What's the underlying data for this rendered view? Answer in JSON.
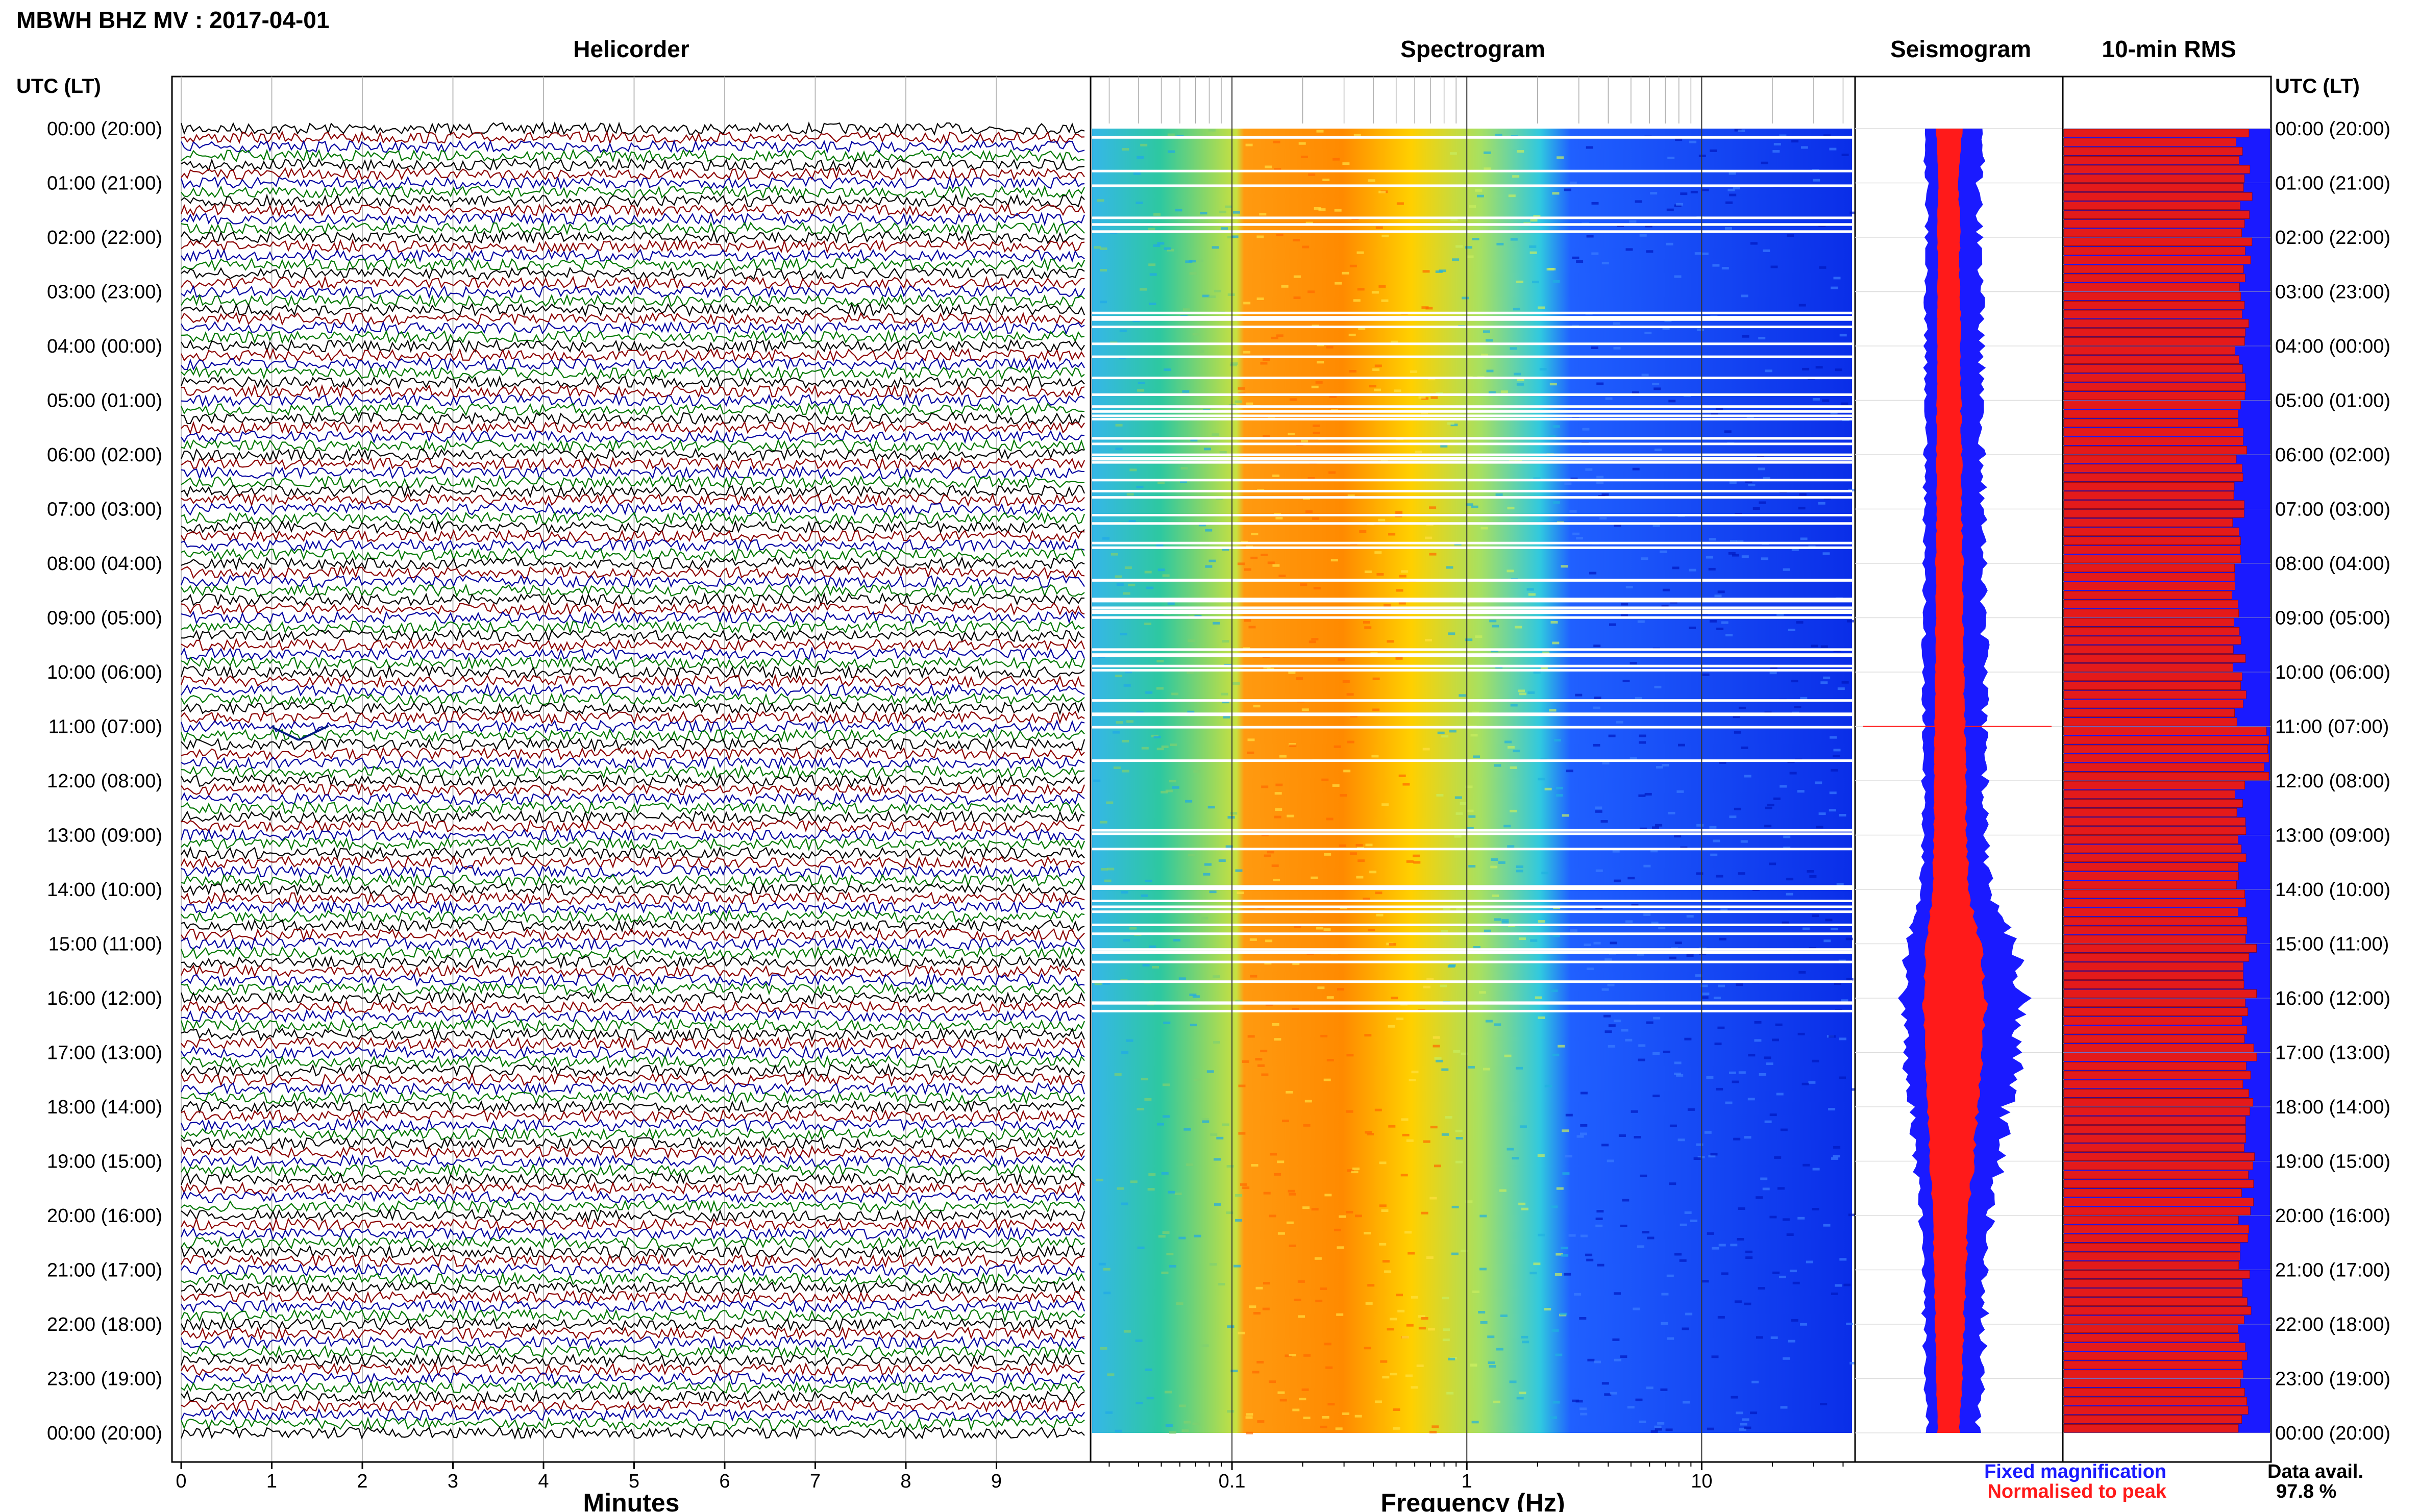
{
  "page_title": "MBWH BHZ MV : 2017-04-01",
  "panels": {
    "helicorder": "Helicorder",
    "spectrogram": "Spectrogram",
    "seismogram": "Seismogram",
    "rms": "10-min RMS"
  },
  "time_axis_label": "UTC (LT)",
  "time_labels": [
    "00:00 (20:00)",
    "01:00 (21:00)",
    "02:00 (22:00)",
    "03:00 (23:00)",
    "04:00 (00:00)",
    "05:00 (01:00)",
    "06:00 (02:00)",
    "07:00 (03:00)",
    "08:00 (04:00)",
    "09:00 (05:00)",
    "10:00 (06:00)",
    "11:00 (07:00)",
    "12:00 (08:00)",
    "13:00 (09:00)",
    "14:00 (10:00)",
    "15:00 (11:00)",
    "16:00 (12:00)",
    "17:00 (13:00)",
    "18:00 (14:00)",
    "19:00 (15:00)",
    "20:00 (16:00)",
    "21:00 (17:00)",
    "22:00 (18:00)",
    "23:00 (19:00)",
    "00:00 (20:00)"
  ],
  "legend": {
    "fixed": "Fixed magnification",
    "fixed_color": "#1a1aff",
    "normalised": "Normalised to peak",
    "normalised_color": "#ff1a1a"
  },
  "data_avail": {
    "label": "Data avail.",
    "value": "97.8 %"
  },
  "chart_data": [
    {
      "type": "line",
      "panel": "helicorder",
      "xlabel": "Minutes",
      "x_ticks": [
        "0",
        "1",
        "2",
        "3",
        "4",
        "5",
        "6",
        "7",
        "8",
        "9"
      ],
      "xlim": [
        0,
        10
      ],
      "rows_per_hour": 6,
      "trace_colors": [
        "#000000",
        "#8b0000",
        "#0000a0",
        "#007700"
      ],
      "events": [
        {
          "time": "11:00",
          "minute": 1.3,
          "description": "spike"
        }
      ]
    },
    {
      "type": "heatmap",
      "panel": "spectrogram",
      "xlabel": "Frequency (Hz)",
      "x_scale": "log",
      "xlim": [
        0.025,
        45
      ],
      "x_ticks": [
        "0.1",
        "1",
        "10"
      ],
      "colors": [
        "#20a0ff",
        "#2ec8a0",
        "#c8e040",
        "#ffd000",
        "#ff8a00",
        "#ffb000",
        "#e8e040",
        "#80e060",
        "#30c8e0",
        "#2060ff",
        "#0a2ee8"
      ]
    },
    {
      "type": "area",
      "panel": "seismogram",
      "series": [
        {
          "name": "Fixed magnification",
          "color": "#1a1aff",
          "values": [
            0.38,
            0.33,
            0.34,
            0.35,
            0.35,
            0.36,
            0.36,
            0.37,
            0.37,
            0.38,
            0.39,
            0.39,
            0.4,
            0.41,
            0.43,
            0.66,
            0.78,
            0.72,
            0.6,
            0.55,
            0.45,
            0.4,
            0.38,
            0.36,
            0.32
          ]
        },
        {
          "name": "Normalised to peak",
          "color": "#ff1a1a",
          "values": [
            0.16,
            0.13,
            0.14,
            0.14,
            0.15,
            0.15,
            0.16,
            0.16,
            0.17,
            0.17,
            0.18,
            0.19,
            0.2,
            0.21,
            0.22,
            0.34,
            0.4,
            0.36,
            0.31,
            0.28,
            0.22,
            0.2,
            0.18,
            0.17,
            0.14
          ]
        }
      ]
    },
    {
      "type": "bar",
      "panel": "10-min RMS",
      "series": [
        {
          "name": "Fixed magnification",
          "color": "#1a1aff",
          "values": "full-width background"
        },
        {
          "name": "Normalised to peak",
          "color": "#ff1a1a",
          "hourly_mean_fraction": [
            0.87,
            0.88,
            0.88,
            0.87,
            0.86,
            0.86,
            0.85,
            0.85,
            0.85,
            0.85,
            0.86,
            0.99,
            0.85,
            0.86,
            0.88,
            0.9,
            0.9,
            0.9,
            0.89,
            0.89,
            0.88,
            0.88,
            0.87,
            0.87
          ]
        }
      ]
    }
  ]
}
